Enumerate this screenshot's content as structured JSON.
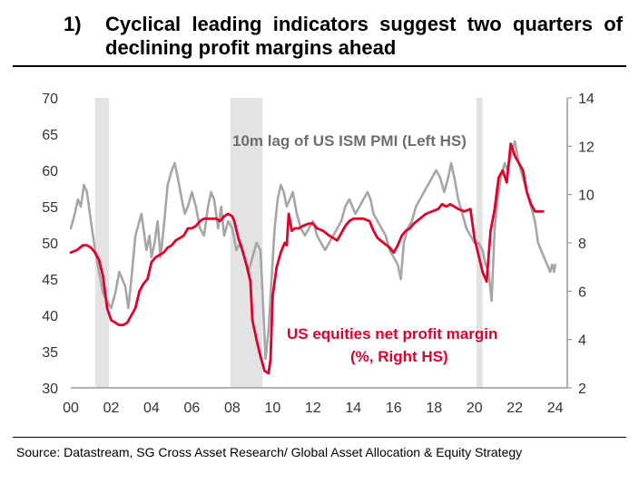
{
  "title": {
    "number": "1)",
    "text": "Cyclical leading indicators suggest two quarters of declining profit margins ahead"
  },
  "source": "Source: Datastream, SG Cross Asset Research/ Global Asset Allocation & Equity Strategy",
  "chart_data": {
    "type": "line",
    "x_tick_labels": [
      "00",
      "02",
      "04",
      "06",
      "08",
      "10",
      "12",
      "14",
      "16",
      "18",
      "20",
      "22",
      "24"
    ],
    "x_ticks": [
      2000,
      2002,
      2004,
      2006,
      2008,
      2010,
      2012,
      2014,
      2016,
      2018,
      2020,
      2022,
      2024
    ],
    "xlim": [
      2000,
      2024.6
    ],
    "y_left": {
      "ylim": [
        30,
        70
      ],
      "ticks": [
        30,
        35,
        40,
        45,
        50,
        55,
        60,
        65,
        70
      ]
    },
    "y_right": {
      "ylim": [
        2,
        14
      ],
      "ticks": [
        2,
        4,
        6,
        8,
        10,
        12,
        14
      ]
    },
    "grid": false,
    "recessions": [
      [
        2001.2,
        2001.9
      ],
      [
        2007.9,
        2009.5
      ],
      [
        2020.1,
        2020.4
      ]
    ],
    "colors": {
      "ism": "#a6a6a6",
      "margin": "#e0002b",
      "recession": "#e3e3e3",
      "axis": "#999999"
    },
    "series": [
      {
        "name": "10m lag of US ISM PMI (Left HS)",
        "axis": "left",
        "label": "10m lag of US ISM PMI (Left HS)",
        "points": [
          [
            2000.0,
            52
          ],
          [
            2000.2,
            54
          ],
          [
            2000.35,
            56
          ],
          [
            2000.5,
            55
          ],
          [
            2000.65,
            58
          ],
          [
            2000.8,
            57
          ],
          [
            2001.0,
            53
          ],
          [
            2001.2,
            49
          ],
          [
            2001.4,
            46
          ],
          [
            2001.6,
            43
          ],
          [
            2001.8,
            42
          ],
          [
            2002.0,
            41
          ],
          [
            2002.2,
            43
          ],
          [
            2002.4,
            46
          ],
          [
            2002.55,
            45
          ],
          [
            2002.7,
            44
          ],
          [
            2002.85,
            41
          ],
          [
            2003.0,
            45
          ],
          [
            2003.2,
            51
          ],
          [
            2003.4,
            53
          ],
          [
            2003.5,
            54
          ],
          [
            2003.6,
            52
          ],
          [
            2003.75,
            49
          ],
          [
            2003.9,
            51
          ],
          [
            2004.0,
            48
          ],
          [
            2004.15,
            50
          ],
          [
            2004.3,
            53
          ],
          [
            2004.45,
            48
          ],
          [
            2004.6,
            52
          ],
          [
            2004.8,
            58
          ],
          [
            2005.0,
            60
          ],
          [
            2005.15,
            61
          ],
          [
            2005.3,
            59
          ],
          [
            2005.5,
            56
          ],
          [
            2005.65,
            54
          ],
          [
            2005.8,
            55
          ],
          [
            2006.0,
            57
          ],
          [
            2006.2,
            55
          ],
          [
            2006.4,
            52
          ],
          [
            2006.6,
            51
          ],
          [
            2006.8,
            55
          ],
          [
            2006.95,
            57
          ],
          [
            2007.1,
            56
          ],
          [
            2007.3,
            52
          ],
          [
            2007.45,
            55
          ],
          [
            2007.6,
            51
          ],
          [
            2007.8,
            53
          ],
          [
            2008.0,
            52
          ],
          [
            2008.2,
            49
          ],
          [
            2008.4,
            50
          ],
          [
            2008.6,
            48
          ],
          [
            2008.8,
            46
          ],
          [
            2009.0,
            48
          ],
          [
            2009.2,
            50
          ],
          [
            2009.4,
            49
          ],
          [
            2009.55,
            40
          ],
          [
            2009.65,
            34
          ],
          [
            2009.8,
            38
          ],
          [
            2009.95,
            45
          ],
          [
            2010.1,
            52
          ],
          [
            2010.25,
            56
          ],
          [
            2010.4,
            58
          ],
          [
            2010.55,
            57
          ],
          [
            2010.7,
            55
          ],
          [
            2010.85,
            56
          ],
          [
            2011.0,
            57
          ],
          [
            2011.2,
            54
          ],
          [
            2011.4,
            52
          ],
          [
            2011.6,
            51
          ],
          [
            2011.8,
            52
          ],
          [
            2012.0,
            53
          ],
          [
            2012.2,
            51
          ],
          [
            2012.4,
            50
          ],
          [
            2012.6,
            49
          ],
          [
            2012.8,
            50
          ],
          [
            2013.0,
            51
          ],
          [
            2013.2,
            52
          ],
          [
            2013.4,
            53
          ],
          [
            2013.6,
            55
          ],
          [
            2013.8,
            56
          ],
          [
            2013.95,
            55
          ],
          [
            2014.1,
            54
          ],
          [
            2014.3,
            55
          ],
          [
            2014.5,
            56
          ],
          [
            2014.7,
            57
          ],
          [
            2014.85,
            56
          ],
          [
            2015.0,
            54
          ],
          [
            2015.2,
            53
          ],
          [
            2015.4,
            52
          ],
          [
            2015.6,
            51
          ],
          [
            2015.8,
            49
          ],
          [
            2016.0,
            48
          ],
          [
            2016.2,
            47
          ],
          [
            2016.35,
            45
          ],
          [
            2016.5,
            50
          ],
          [
            2016.7,
            52
          ],
          [
            2016.9,
            53
          ],
          [
            2017.1,
            55
          ],
          [
            2017.3,
            56
          ],
          [
            2017.5,
            57
          ],
          [
            2017.7,
            58
          ],
          [
            2017.9,
            59
          ],
          [
            2018.1,
            60
          ],
          [
            2018.3,
            59
          ],
          [
            2018.5,
            57
          ],
          [
            2018.7,
            59
          ],
          [
            2018.85,
            61
          ],
          [
            2019.0,
            59
          ],
          [
            2019.2,
            56
          ],
          [
            2019.4,
            54
          ],
          [
            2019.6,
            52
          ],
          [
            2019.8,
            51
          ],
          [
            2020.0,
            50
          ],
          [
            2020.2,
            50
          ],
          [
            2020.4,
            49
          ],
          [
            2020.55,
            47
          ],
          [
            2020.7,
            46
          ],
          [
            2020.85,
            42
          ],
          [
            2021.0,
            52
          ],
          [
            2021.15,
            56
          ],
          [
            2021.3,
            59
          ],
          [
            2021.5,
            61
          ],
          [
            2021.65,
            60
          ],
          [
            2021.8,
            62
          ],
          [
            2022.0,
            64
          ],
          [
            2022.2,
            61
          ],
          [
            2022.4,
            59
          ],
          [
            2022.6,
            57
          ],
          [
            2022.8,
            55
          ],
          [
            2023.0,
            53
          ],
          [
            2023.15,
            50
          ],
          [
            2023.3,
            49
          ],
          [
            2023.45,
            48
          ],
          [
            2023.6,
            47
          ],
          [
            2023.75,
            46
          ],
          [
            2023.85,
            47
          ],
          [
            2023.95,
            46
          ],
          [
            2024.0,
            47
          ]
        ]
      },
      {
        "name": "US equities net profit margin (%, Right HS)",
        "axis": "right",
        "label_lines": [
          "US equities net profit margin",
          "(%, Right HS)"
        ],
        "points": [
          [
            2000.0,
            7.6
          ],
          [
            2000.3,
            7.7
          ],
          [
            2000.6,
            7.9
          ],
          [
            2000.8,
            7.9
          ],
          [
            2001.0,
            7.8
          ],
          [
            2001.2,
            7.6
          ],
          [
            2001.4,
            7.3
          ],
          [
            2001.6,
            6.6
          ],
          [
            2001.8,
            5.3
          ],
          [
            2002.0,
            4.8
          ],
          [
            2002.2,
            4.7
          ],
          [
            2002.4,
            4.6
          ],
          [
            2002.6,
            4.6
          ],
          [
            2002.8,
            4.7
          ],
          [
            2003.0,
            5.0
          ],
          [
            2003.2,
            5.3
          ],
          [
            2003.4,
            6.0
          ],
          [
            2003.6,
            6.3
          ],
          [
            2003.8,
            6.5
          ],
          [
            2004.0,
            7.2
          ],
          [
            2004.2,
            7.4
          ],
          [
            2004.4,
            7.5
          ],
          [
            2004.6,
            7.6
          ],
          [
            2004.8,
            7.8
          ],
          [
            2005.0,
            7.9
          ],
          [
            2005.2,
            8.1
          ],
          [
            2005.4,
            8.2
          ],
          [
            2005.6,
            8.3
          ],
          [
            2005.8,
            8.6
          ],
          [
            2006.0,
            8.6
          ],
          [
            2006.2,
            8.7
          ],
          [
            2006.4,
            8.9
          ],
          [
            2006.6,
            9.0
          ],
          [
            2006.8,
            9.0
          ],
          [
            2007.0,
            9.0
          ],
          [
            2007.2,
            9.0
          ],
          [
            2007.4,
            8.9
          ],
          [
            2007.6,
            9.1
          ],
          [
            2007.8,
            9.2
          ],
          [
            2008.0,
            9.1
          ],
          [
            2008.1,
            8.9
          ],
          [
            2008.3,
            8.2
          ],
          [
            2008.5,
            7.7
          ],
          [
            2008.7,
            7.1
          ],
          [
            2008.9,
            6.4
          ],
          [
            2009.0,
            4.8
          ],
          [
            2009.2,
            4.0
          ],
          [
            2009.4,
            3.3
          ],
          [
            2009.6,
            2.7
          ],
          [
            2009.8,
            2.6
          ],
          [
            2009.9,
            3.2
          ],
          [
            2010.0,
            5.8
          ],
          [
            2010.2,
            7.0
          ],
          [
            2010.4,
            7.6
          ],
          [
            2010.6,
            8.0
          ],
          [
            2010.7,
            7.9
          ],
          [
            2010.8,
            9.2
          ],
          [
            2010.95,
            8.5
          ],
          [
            2011.1,
            8.6
          ],
          [
            2011.3,
            8.6
          ],
          [
            2011.5,
            8.7
          ],
          [
            2011.8,
            8.8
          ],
          [
            2012.0,
            8.8
          ],
          [
            2012.2,
            8.6
          ],
          [
            2012.5,
            8.5
          ],
          [
            2012.8,
            8.3
          ],
          [
            2013.0,
            8.2
          ],
          [
            2013.2,
            8.1
          ],
          [
            2013.4,
            8.4
          ],
          [
            2013.6,
            8.7
          ],
          [
            2013.8,
            8.9
          ],
          [
            2014.0,
            9.0
          ],
          [
            2014.2,
            9.0
          ],
          [
            2014.5,
            9.0
          ],
          [
            2014.8,
            8.9
          ],
          [
            2015.0,
            8.5
          ],
          [
            2015.2,
            8.2
          ],
          [
            2015.5,
            8.0
          ],
          [
            2015.8,
            7.8
          ],
          [
            2016.0,
            7.6
          ],
          [
            2016.2,
            7.9
          ],
          [
            2016.4,
            8.3
          ],
          [
            2016.6,
            8.5
          ],
          [
            2016.8,
            8.6
          ],
          [
            2017.0,
            8.8
          ],
          [
            2017.3,
            9.0
          ],
          [
            2017.6,
            9.2
          ],
          [
            2017.9,
            9.3
          ],
          [
            2018.2,
            9.4
          ],
          [
            2018.4,
            9.6
          ],
          [
            2018.6,
            9.5
          ],
          [
            2018.8,
            9.6
          ],
          [
            2019.0,
            9.5
          ],
          [
            2019.2,
            9.4
          ],
          [
            2019.5,
            9.3
          ],
          [
            2019.8,
            9.4
          ],
          [
            2020.0,
            8.2
          ],
          [
            2020.2,
            7.5
          ],
          [
            2020.4,
            6.8
          ],
          [
            2020.6,
            6.4
          ],
          [
            2020.8,
            8.5
          ],
          [
            2021.0,
            9.4
          ],
          [
            2021.2,
            10.7
          ],
          [
            2021.4,
            11.0
          ],
          [
            2021.6,
            10.5
          ],
          [
            2021.8,
            12.1
          ],
          [
            2022.0,
            11.6
          ],
          [
            2022.2,
            11.3
          ],
          [
            2022.4,
            11.0
          ],
          [
            2022.6,
            10.1
          ],
          [
            2022.8,
            9.6
          ],
          [
            2023.0,
            9.3
          ],
          [
            2023.2,
            9.3
          ],
          [
            2023.4,
            9.3
          ]
        ]
      }
    ]
  }
}
